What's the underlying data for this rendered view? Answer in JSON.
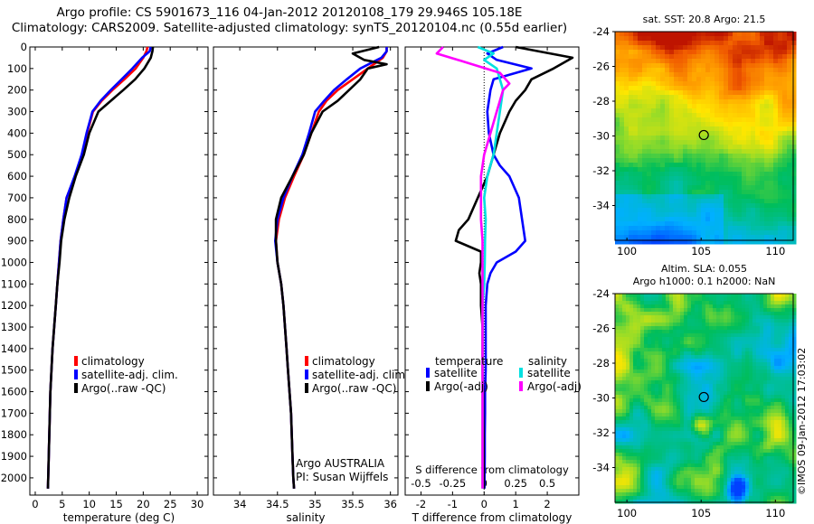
{
  "header": {
    "line1": "Argo profile: CS 5901673_116 04-Jan-2012 20120108_179 29.946S 105.18E",
    "line2": "Climatology: CARS2009. Satellite-adjusted climatology: synTS_20120104.nc (0.55d earlier)"
  },
  "depth_ticks": [
    0,
    100,
    200,
    300,
    400,
    500,
    600,
    700,
    800,
    900,
    1000,
    1100,
    1200,
    1300,
    1400,
    1500,
    1600,
    1700,
    1800,
    1900,
    2000
  ],
  "chart_data": [
    {
      "type": "line",
      "id": "temperature",
      "xlabel": "temperature (deg C)",
      "xlim": [
        -1,
        32
      ],
      "ylim": [
        0,
        2080
      ],
      "y_reversed": true,
      "xticks": [
        0,
        5,
        10,
        15,
        20,
        25,
        30
      ],
      "legend": [
        "climatology",
        "satellite-adj. clim.",
        "Argo(..raw -QC)"
      ],
      "series": [
        {
          "name": "climatology",
          "color": "#ff0000",
          "x": [
            20.8,
            20.6,
            20.0,
            18.6,
            16.5,
            14.3,
            12.3,
            10.7,
            9.6,
            8.7,
            7.4,
            5.8,
            5.2,
            4.7,
            4.4,
            4.1,
            3.8,
            3.5,
            3.2,
            3.0,
            2.8,
            2.7,
            2.6,
            2.5,
            2.4,
            2.35
          ],
          "y": [
            0,
            20,
            50,
            100,
            150,
            200,
            250,
            300,
            400,
            500,
            600,
            700,
            800,
            900,
            1000,
            1100,
            1200,
            1300,
            1400,
            1500,
            1600,
            1700,
            1800,
            1900,
            2000,
            2050
          ]
        },
        {
          "name": "satellite-adj. clim.",
          "color": "#0000ff",
          "x": [
            21.4,
            21.2,
            19.8,
            18.0,
            16.0,
            14.0,
            12.1,
            10.6,
            9.5,
            8.6,
            7.3,
            5.8,
            5.2,
            4.7,
            4.4,
            4.1,
            3.8,
            3.5,
            3.2,
            3.0,
            2.8,
            2.7,
            2.6,
            2.5,
            2.4,
            2.35
          ],
          "y": [
            0,
            20,
            50,
            100,
            150,
            200,
            250,
            300,
            400,
            500,
            600,
            700,
            800,
            900,
            1000,
            1100,
            1200,
            1300,
            1400,
            1500,
            1600,
            1700,
            1800,
            1900,
            2000,
            2050
          ]
        },
        {
          "name": "Argo(..raw -QC)",
          "color": "#000000",
          "x": [
            21.8,
            21.7,
            21.4,
            20.2,
            18.5,
            16.3,
            14.0,
            11.7,
            10.0,
            9.0,
            7.5,
            6.3,
            5.4,
            4.8,
            4.5,
            4.1,
            3.8,
            3.5,
            3.2,
            3.0,
            2.8,
            2.7,
            2.6,
            2.5,
            2.4,
            2.35
          ],
          "y": [
            0,
            20,
            50,
            100,
            150,
            200,
            250,
            300,
            400,
            500,
            600,
            700,
            800,
            900,
            1000,
            1100,
            1200,
            1300,
            1400,
            1500,
            1600,
            1700,
            1800,
            1900,
            2000,
            2050
          ]
        }
      ]
    },
    {
      "type": "line",
      "id": "salinity",
      "xlabel": "salinity",
      "xlim": [
        33.65,
        36.1
      ],
      "ylim": [
        0,
        2080
      ],
      "y_reversed": true,
      "xticks": [
        34,
        34.5,
        35,
        35.5,
        36
      ],
      "legend": [
        "climatology",
        "satellite-adj. clim.",
        "Argo(..raw -QC)"
      ],
      "annotation": [
        "Argo AUSTRALIA",
        "PI: Susan Wijffels"
      ],
      "series": [
        {
          "name": "climatology",
          "color": "#ff0000",
          "x": [
            35.95,
            35.95,
            35.9,
            35.7,
            35.5,
            35.3,
            35.15,
            35.05,
            34.95,
            34.85,
            34.72,
            34.6,
            34.52,
            34.48,
            34.5,
            34.55,
            34.58,
            34.6,
            34.62,
            34.64,
            34.66,
            34.68,
            34.69,
            34.7,
            34.71,
            34.72
          ],
          "y": [
            0,
            20,
            50,
            100,
            150,
            200,
            250,
            300,
            400,
            500,
            600,
            700,
            800,
            900,
            1000,
            1100,
            1200,
            1300,
            1400,
            1500,
            1600,
            1700,
            1800,
            1900,
            2000,
            2050
          ]
        },
        {
          "name": "satellite-adj. clim.",
          "color": "#0000ff",
          "x": [
            35.95,
            35.95,
            35.88,
            35.6,
            35.42,
            35.25,
            35.12,
            35.0,
            34.92,
            34.83,
            34.7,
            34.58,
            34.5,
            34.47,
            34.5,
            34.55,
            34.58,
            34.6,
            34.62,
            34.64,
            34.66,
            34.68,
            34.69,
            34.7,
            34.71,
            34.72
          ],
          "y": [
            0,
            20,
            50,
            100,
            150,
            200,
            250,
            300,
            400,
            500,
            600,
            700,
            800,
            900,
            1000,
            1100,
            1200,
            1300,
            1400,
            1500,
            1600,
            1700,
            1800,
            1900,
            2000,
            2050
          ]
        },
        {
          "name": "Argo(..raw -QC)",
          "color": "#000000",
          "x": [
            35.85,
            35.5,
            35.65,
            35.95,
            35.7,
            35.6,
            35.3,
            35.1,
            34.95,
            34.85,
            34.7,
            34.55,
            34.48,
            34.48,
            34.5,
            34.55,
            34.58,
            34.6,
            34.62,
            34.64,
            34.66,
            34.68,
            34.69,
            34.7,
            34.71,
            34.72
          ],
          "y": [
            0,
            30,
            60,
            80,
            100,
            150,
            250,
            300,
            400,
            500,
            600,
            700,
            800,
            900,
            1000,
            1100,
            1200,
            1300,
            1400,
            1500,
            1600,
            1700,
            1800,
            1900,
            2000,
            2050
          ]
        }
      ]
    },
    {
      "type": "line",
      "id": "differences",
      "xlabel": "T difference from climatology",
      "xlabel_top": "S difference from climatology",
      "xlim": [
        -2.5,
        3.0
      ],
      "ylim": [
        0,
        2080
      ],
      "y_reversed": true,
      "xticks": [
        -2,
        -1,
        0,
        1,
        2
      ],
      "xticks_top": [
        -0.5,
        -0.25,
        0,
        0.25,
        0.5
      ],
      "xticks_top_labels": [
        "-0.5",
        "-0.25",
        "0",
        "0.25",
        "0.5"
      ],
      "legend_temperature_title": "temperature",
      "legend_salinity_title": "salinity",
      "legend_temperature": [
        "satellite",
        "Argo(-adj)"
      ],
      "legend_salinity": [
        "satellite",
        "Argo(-adj)"
      ],
      "series": [
        {
          "name": "satellite",
          "color": "#0000ff",
          "x": [
            0.6,
            0.1,
            0.4,
            1.5,
            0.3,
            0.2,
            0.1,
            0.15,
            0.3,
            0.5,
            0.8,
            1.1,
            1.2,
            1.3,
            1.0,
            0.4,
            0.2,
            0.1,
            0.05,
            0.05,
            0.05,
            0.03,
            0.03,
            0.02,
            0.02,
            0.01
          ],
          "y": [
            0,
            30,
            60,
            100,
            150,
            200,
            300,
            400,
            500,
            550,
            600,
            700,
            800,
            900,
            950,
            1000,
            1050,
            1100,
            1200,
            1300,
            1500,
            1600,
            1700,
            1800,
            1900,
            2050
          ]
        },
        {
          "name": "Argo(-adj)",
          "color": "#000000",
          "x": [
            1.0,
            2.8,
            2.2,
            1.5,
            1.3,
            1.0,
            0.8,
            0.5,
            0.3,
            0.1,
            -0.2,
            -0.5,
            -0.8,
            -0.9,
            -0.1,
            -0.1,
            -0.15,
            -0.1,
            -0.1,
            -0.05,
            -0.05,
            -0.03,
            -0.03,
            -0.02,
            -0.02,
            -0.01
          ],
          "y": [
            0,
            50,
            100,
            150,
            200,
            250,
            300,
            400,
            500,
            600,
            700,
            800,
            850,
            900,
            950,
            1000,
            1050,
            1100,
            1200,
            1300,
            1500,
            1600,
            1700,
            1800,
            1900,
            2050
          ]
        },
        {
          "name": "satellite",
          "color": "#00e0e0",
          "x": [
            -0.2,
            0.3,
            0.0,
            0.4,
            0.5,
            0.6,
            0.5,
            0.4,
            0.3,
            0.1,
            0.0,
            0.05,
            0.03,
            0.02,
            0.0,
            -0.05,
            -0.05,
            -0.05,
            -0.05,
            -0.05,
            -0.05,
            -0.05,
            -0.05,
            -0.05,
            -0.05
          ],
          "y": [
            0,
            30,
            60,
            100,
            150,
            200,
            300,
            400,
            500,
            600,
            700,
            800,
            900,
            1000,
            1100,
            1200,
            1300,
            1400,
            1500,
            1600,
            1700,
            1800,
            1900,
            2000,
            2050
          ]
        },
        {
          "name": "Argo(-adj)",
          "color": "#ff00ff",
          "x": [
            -1.3,
            -1.5,
            -0.6,
            0.5,
            0.8,
            0.6,
            0.4,
            0.2,
            0.0,
            -0.1,
            -0.1,
            -0.1,
            -0.05,
            -0.05,
            -0.05,
            -0.05,
            -0.05,
            -0.05,
            -0.05,
            -0.05,
            -0.05,
            -0.05,
            -0.05,
            -0.05,
            -0.05
          ],
          "y": [
            0,
            30,
            70,
            120,
            170,
            200,
            300,
            400,
            500,
            600,
            700,
            800,
            900,
            1000,
            1100,
            1200,
            1300,
            1400,
            1500,
            1600,
            1700,
            1800,
            1900,
            2000,
            2050
          ]
        }
      ]
    },
    {
      "type": "heatmap",
      "id": "sst_map",
      "title": "sat. SST: 20.8  Argo: 21.5",
      "xlim": [
        99.2,
        111.2
      ],
      "ylim": [
        -36,
        -24
      ],
      "xticks": [
        100,
        105,
        110
      ],
      "yticks": [
        -24,
        -26,
        -28,
        -30,
        -32,
        -34
      ],
      "marker": [
        105.18,
        -29.946
      ]
    },
    {
      "type": "heatmap",
      "id": "sla_map",
      "title": "Altim. SLA: 0.055",
      "subtitle": "Argo h1000: 0.1 h2000: NaN",
      "xlim": [
        99.2,
        111.2
      ],
      "ylim": [
        -36,
        -24
      ],
      "xticks": [
        100,
        105,
        110
      ],
      "yticks": [
        -24,
        -26,
        -28,
        -30,
        -32,
        -34
      ],
      "marker": [
        105.18,
        -29.946
      ]
    }
  ],
  "footer": {
    "stamp": "©IMOS 09-Jan-2012 17:03:02"
  }
}
